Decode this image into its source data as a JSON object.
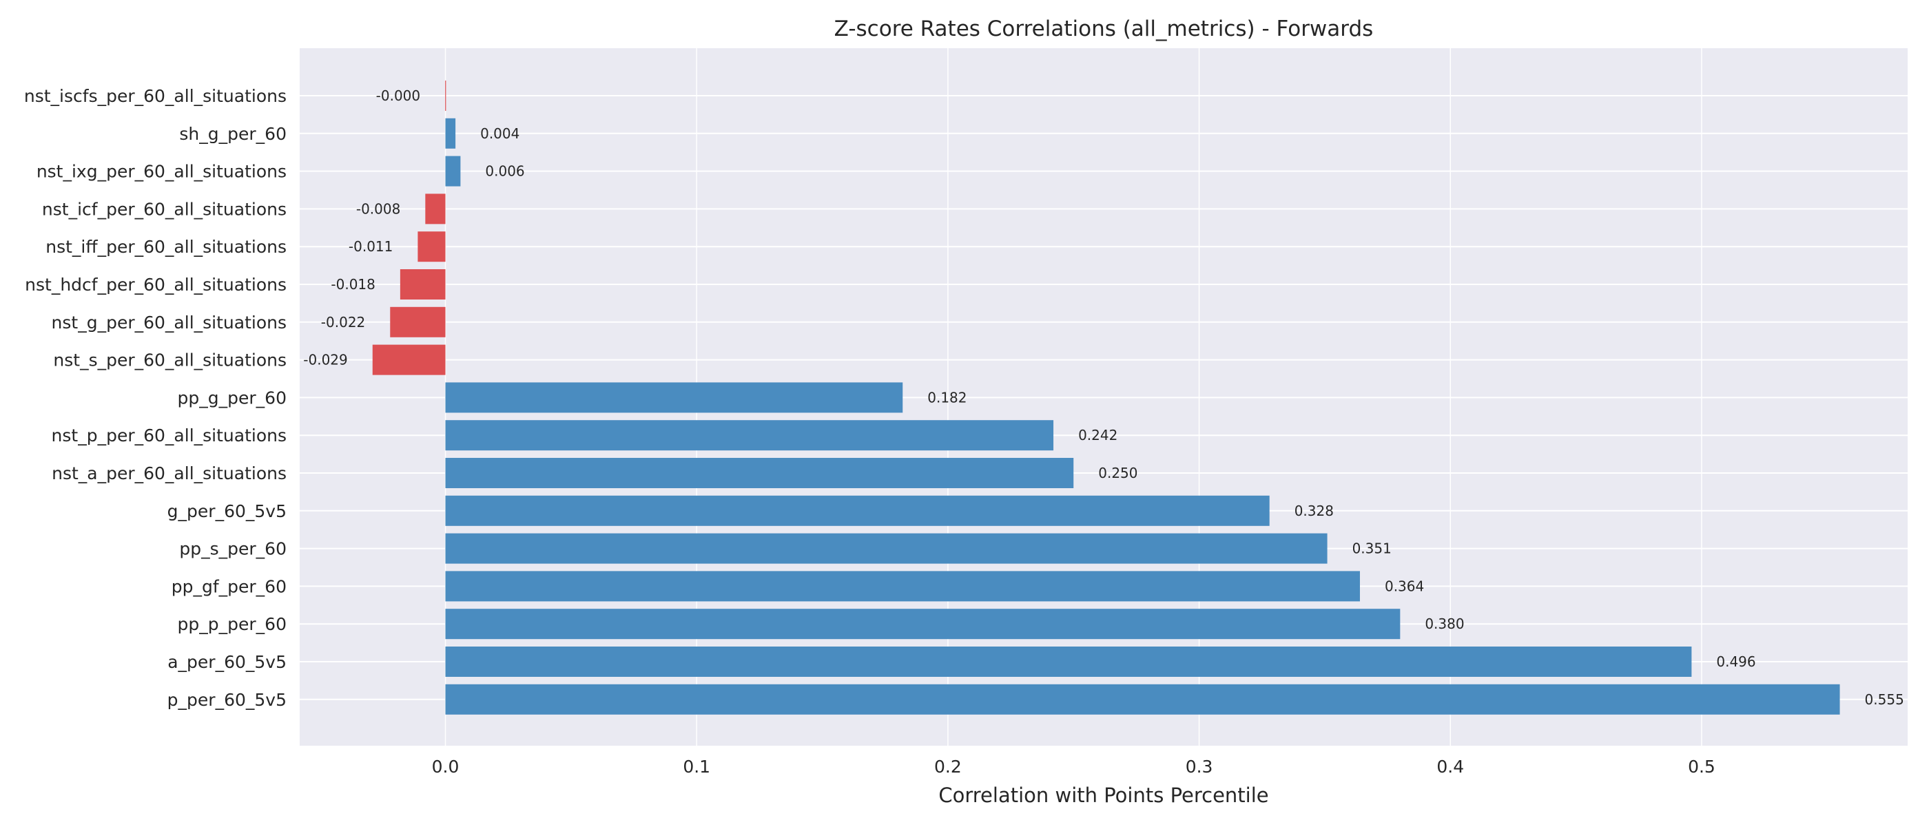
{
  "chart_data": {
    "type": "bar",
    "orientation": "horizontal",
    "title": "Z-score Rates Correlations (all_metrics) - Forwards",
    "xlabel": "Correlation with Points Percentile",
    "ylabel": "",
    "xlim": [
      -0.058,
      0.582
    ],
    "xticks": [
      0.0,
      0.1,
      0.2,
      0.3,
      0.4,
      0.5
    ],
    "xtick_labels": [
      "0.0",
      "0.1",
      "0.2",
      "0.3",
      "0.4",
      "0.5"
    ],
    "grid": true,
    "colors": {
      "positive": "#4a8cc0",
      "negative": "#dc4f52",
      "plot_background": "#eaeaf2",
      "grid": "#ffffff",
      "text": "#262626"
    },
    "categories": [
      "nst_iscfs_per_60_all_situations",
      "sh_g_per_60",
      "nst_ixg_per_60_all_situations",
      "nst_icf_per_60_all_situations",
      "nst_iff_per_60_all_situations",
      "nst_hdcf_per_60_all_situations",
      "nst_g_per_60_all_situations",
      "nst_s_per_60_all_situations",
      "pp_g_per_60",
      "nst_p_per_60_all_situations",
      "nst_a_per_60_all_situations",
      "g_per_60_5v5",
      "pp_s_per_60",
      "pp_gf_per_60",
      "pp_p_per_60",
      "a_per_60_5v5",
      "p_per_60_5v5"
    ],
    "values": [
      -0.0001,
      0.004,
      0.006,
      -0.008,
      -0.011,
      -0.018,
      -0.022,
      -0.029,
      0.182,
      0.242,
      0.25,
      0.328,
      0.351,
      0.364,
      0.38,
      0.496,
      0.555
    ],
    "value_labels": [
      "-0.000",
      "0.004",
      "0.006",
      "-0.008",
      "-0.011",
      "-0.018",
      "-0.022",
      "-0.029",
      "0.182",
      "0.242",
      "0.250",
      "0.328",
      "0.351",
      "0.364",
      "0.380",
      "0.496",
      "0.555"
    ]
  }
}
